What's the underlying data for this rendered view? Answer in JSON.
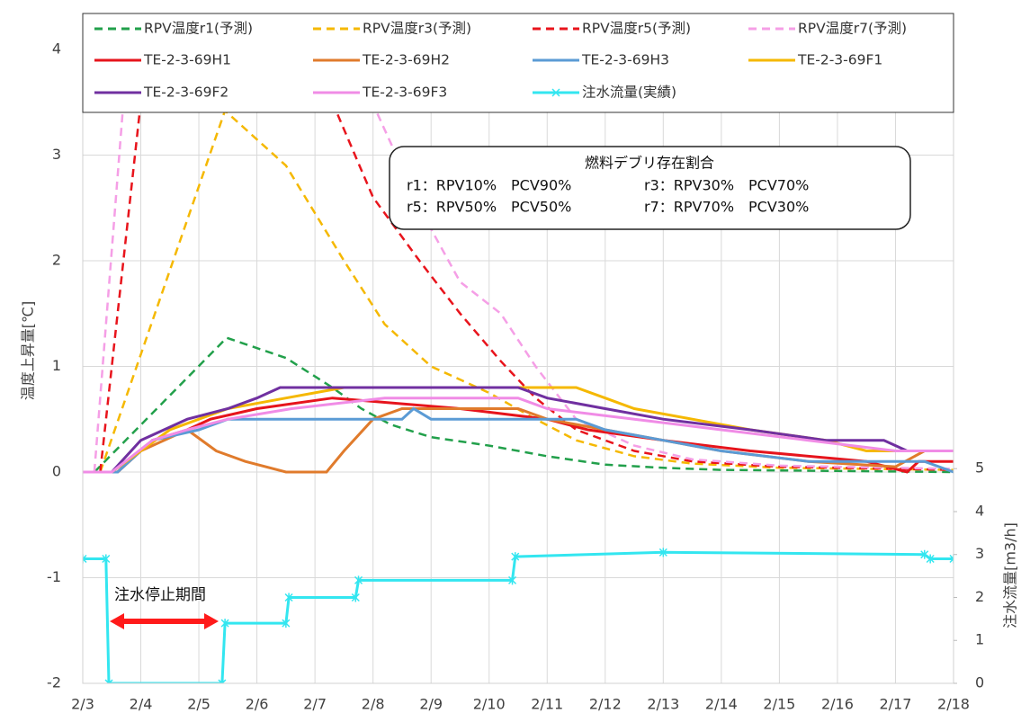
{
  "chart_data": {
    "type": "line",
    "y_label": "温度上昇量[℃]",
    "y2_label": "注水流量[m3/h]",
    "xlim": [
      3,
      18
    ],
    "xticks": [
      {
        "value": 3,
        "label": "2/3"
      },
      {
        "value": 4,
        "label": "2/4"
      },
      {
        "value": 5,
        "label": "2/5"
      },
      {
        "value": 6,
        "label": "2/6"
      },
      {
        "value": 7,
        "label": "2/7"
      },
      {
        "value": 8,
        "label": "2/8"
      },
      {
        "value": 9,
        "label": "2/9"
      },
      {
        "value": 10,
        "label": "2/10"
      },
      {
        "value": 11,
        "label": "2/11"
      },
      {
        "value": 12,
        "label": "2/12"
      },
      {
        "value": 13,
        "label": "2/13"
      },
      {
        "value": 14,
        "label": "2/14"
      },
      {
        "value": 15,
        "label": "2/15"
      },
      {
        "value": 16,
        "label": "2/16"
      },
      {
        "value": 17,
        "label": "2/17"
      },
      {
        "value": 18,
        "label": "2/18"
      }
    ],
    "ylim": [
      -2,
      4.34
    ],
    "yticks": [
      -2,
      -1,
      0,
      1,
      2,
      3,
      4
    ],
    "y2lim": [
      0,
      15.6
    ],
    "y2ticks": [
      0,
      1,
      2,
      3,
      4,
      5
    ],
    "grid": true,
    "legend": "top",
    "annotation_title": "燃料デブリ存在割合",
    "annotation_lines": [
      [
        "r1：RPV10%　PCV90%",
        "r3：RPV30%　PCV70%"
      ],
      [
        "r5：RPV50%　PCV50%",
        "r7：RPV70%　PCV30%"
      ]
    ],
    "period_label": "注水停止期間",
    "series": [
      {
        "name": "RPV温度r1(予測)",
        "color": "#22a04b",
        "style": "dashed",
        "x": [
          3.2,
          5.48,
          6.5,
          7.3,
          7.8,
          8.3,
          9,
          10,
          11,
          12,
          13,
          14,
          16,
          18
        ],
        "values": [
          0,
          1.27,
          1.08,
          0.8,
          0.6,
          0.45,
          0.33,
          0.25,
          0.15,
          0.07,
          0.04,
          0.02,
          0.01,
          0
        ]
      },
      {
        "name": "RPV温度r3(予測)",
        "color": "#f5b800",
        "style": "dashed",
        "x": [
          3.3,
          5.45,
          6.5,
          7.5,
          8.2,
          9,
          10,
          10.8,
          11.5,
          12.5,
          13.5,
          15,
          18
        ],
        "values": [
          0,
          3.42,
          2.9,
          2.0,
          1.4,
          1.0,
          0.75,
          0.5,
          0.3,
          0.15,
          0.08,
          0.04,
          0.02
        ]
      },
      {
        "name": "RPV温度r5(予測)",
        "color": "#e8141c",
        "style": "dashed",
        "x": [
          3.3,
          4.0,
          5.5,
          7.3,
          8,
          8.8,
          9.5,
          10.2,
          10.8,
          11.5,
          12.5,
          13.5,
          15,
          18
        ],
        "values": [
          0,
          3.5,
          5.5,
          3.5,
          2.6,
          2.0,
          1.5,
          1.05,
          0.7,
          0.4,
          0.2,
          0.1,
          0.05,
          0.02
        ]
      },
      {
        "name": "RPV温度r7(予測)",
        "color": "#f59fe6",
        "style": "dashed",
        "x": [
          3.2,
          3.7,
          5.5,
          8.4,
          8.9,
          9.5,
          10.2,
          10.8,
          11.5,
          12.5,
          13.5,
          15,
          18
        ],
        "values": [
          0,
          3.5,
          6.5,
          3.0,
          2.4,
          1.8,
          1.5,
          1.0,
          0.5,
          0.25,
          0.12,
          0.06,
          0.03
        ]
      },
      {
        "name": "TE-2-3-69H1",
        "color": "#e6141c",
        "style": "solid",
        "x": [
          3,
          3.6,
          4.2,
          4.8,
          5.2,
          6,
          7.3,
          9.5,
          11,
          11.7,
          13,
          14.5,
          16.5,
          17.2,
          17.4,
          18
        ],
        "values": [
          0,
          0,
          0.3,
          0.4,
          0.5,
          0.6,
          0.7,
          0.6,
          0.5,
          0.4,
          0.3,
          0.2,
          0.1,
          0,
          0.1,
          0.1
        ]
      },
      {
        "name": "TE-2-3-69H2",
        "color": "#e07b2c",
        "style": "solid",
        "x": [
          3,
          3.6,
          4,
          4.8,
          5.3,
          5.8,
          6.5,
          7.2,
          7.5,
          8,
          8.5,
          10.5,
          11,
          12,
          13,
          14,
          15.5,
          17,
          17.5,
          18
        ],
        "values": [
          0,
          0,
          0.2,
          0.4,
          0.2,
          0.1,
          0,
          0,
          0.2,
          0.5,
          0.6,
          0.6,
          0.5,
          0.4,
          0.3,
          0.2,
          0.1,
          0.05,
          0.2,
          0.2
        ]
      },
      {
        "name": "TE-2-3-69H3",
        "color": "#5b9bd5",
        "style": "solid",
        "x": [
          3,
          3.6,
          4.2,
          5,
          5.5,
          8.5,
          8.7,
          9,
          11.5,
          12,
          13,
          14,
          15.5,
          17.5,
          18
        ],
        "values": [
          0,
          0,
          0.3,
          0.4,
          0.5,
          0.5,
          0.6,
          0.5,
          0.5,
          0.4,
          0.3,
          0.2,
          0.1,
          0.1,
          0
        ]
      },
      {
        "name": "TE-2-3-69F1",
        "color": "#f5b800",
        "style": "solid",
        "x": [
          3,
          3.5,
          4,
          4.5,
          5.5,
          6.5,
          7.5,
          11.5,
          12,
          12.5,
          13.5,
          14.5,
          15.8,
          16.5,
          18
        ],
        "values": [
          0,
          0,
          0.2,
          0.4,
          0.6,
          0.7,
          0.8,
          0.8,
          0.7,
          0.6,
          0.5,
          0.4,
          0.3,
          0.2,
          0.2
        ]
      },
      {
        "name": "TE-2-3-69F2",
        "color": "#7030a0",
        "style": "solid",
        "x": [
          3,
          3.5,
          4,
          4.8,
          5.5,
          6,
          6.4,
          10.5,
          11,
          12,
          13,
          14.5,
          15.8,
          16.8,
          17.2,
          18
        ],
        "values": [
          0,
          0,
          0.3,
          0.5,
          0.6,
          0.7,
          0.8,
          0.8,
          0.7,
          0.6,
          0.5,
          0.4,
          0.3,
          0.3,
          0.2,
          0.2
        ]
      },
      {
        "name": "TE-2-3-69F3",
        "color": "#f08ce6",
        "style": "solid",
        "x": [
          3,
          3.5,
          4.2,
          4.8,
          5.5,
          6.6,
          8.2,
          10.5,
          11,
          12.5,
          14,
          15.5,
          17,
          18
        ],
        "values": [
          0,
          0,
          0.3,
          0.4,
          0.5,
          0.6,
          0.7,
          0.7,
          0.6,
          0.5,
          0.4,
          0.3,
          0.2,
          0.2
        ]
      },
      {
        "name": "注水流量(実績)",
        "color": "#33e6f0",
        "style": "solid",
        "marker": "asterisk",
        "axis": "y2",
        "x": [
          3,
          3.4,
          3.45,
          5.4,
          5.45,
          6.5,
          6.55,
          7.7,
          7.75,
          10.4,
          10.45,
          13,
          17.5,
          17.6,
          18
        ],
        "values": [
          2.9,
          2.9,
          0,
          0,
          1.4,
          1.4,
          2.0,
          2.0,
          2.4,
          2.4,
          2.95,
          3.05,
          3.0,
          2.9,
          2.9
        ]
      }
    ]
  }
}
